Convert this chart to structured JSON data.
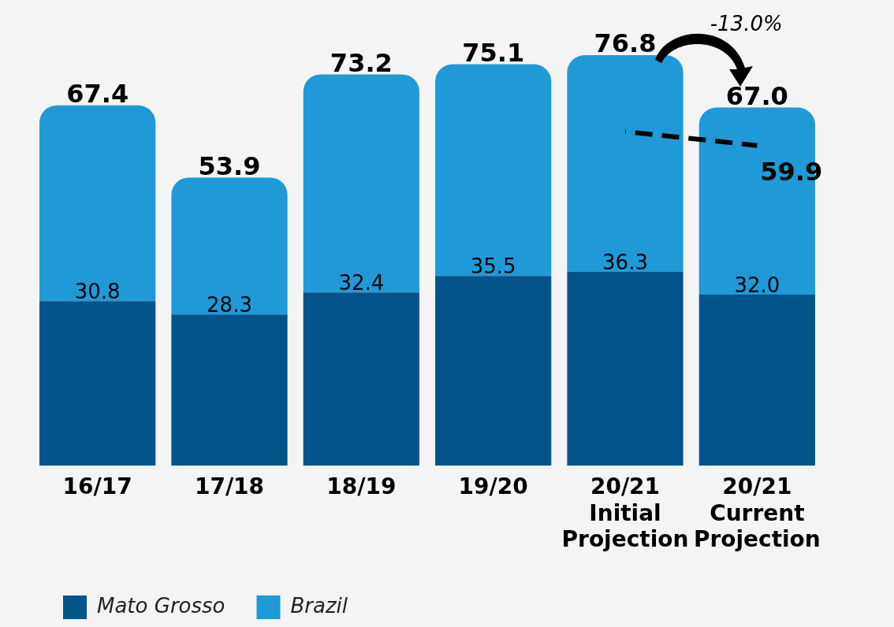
{
  "chart_data": {
    "type": "bar",
    "categories": [
      "16/17",
      "17/18",
      "18/19",
      "19/20",
      "20/21\nInitial\nProjection",
      "20/21\nCurrent\nProjection"
    ],
    "series": [
      {
        "name": "Mato Grosso",
        "color": "#04548c",
        "values": [
          30.8,
          28.3,
          32.4,
          35.5,
          36.3,
          32.0
        ],
        "value_labels": [
          "30.8",
          "28.3",
          "32.4",
          "35.5",
          "36.3",
          "32.0"
        ]
      },
      {
        "name": "Brazil",
        "color": "#1f9ad6",
        "values": [
          36.6,
          25.6,
          40.8,
          39.6,
          40.5,
          35.0
        ]
      },
      {
        "type": "line",
        "color": "#000000",
        "line_style": "dashed",
        "marker": "none",
        "values": [
          null,
          null,
          null,
          null,
          62.5,
          59.9
        ],
        "value_labels": [
          null,
          null,
          null,
          null,
          null,
          "59.9"
        ]
      }
    ],
    "annotations": [
      "-13.0%"
    ],
    "totals": [
      "67.4",
      "53.9",
      "73.2",
      "75.1",
      "76.8",
      "67.0"
    ],
    "stacked": true,
    "legend": "bottom left",
    "grid": false
  }
}
